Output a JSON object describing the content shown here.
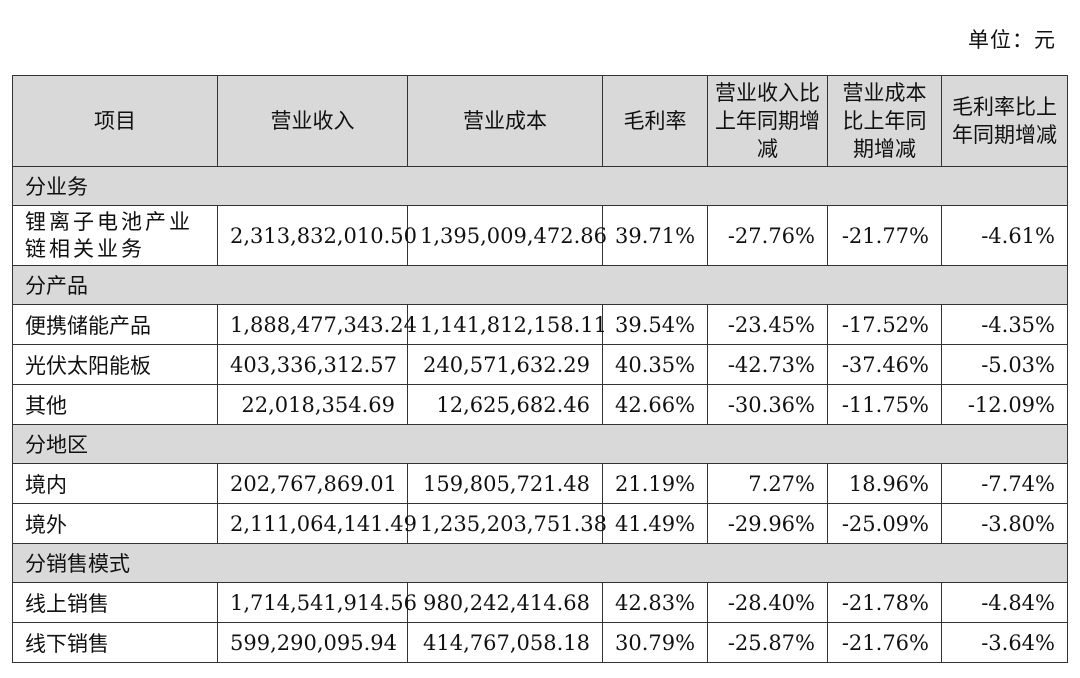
{
  "unit_label": "单位：元",
  "columns": [
    "项目",
    "营业收入",
    "营业成本",
    "毛利率",
    "营业收入比上年同期增减",
    "营业成本比上年同期增减",
    "毛利率比上年同期增减"
  ],
  "sections": [
    {
      "title": "分业务",
      "rows": [
        {
          "item": "锂离子电池产业链相关业务",
          "revenue": "2,313,832,010.50",
          "cost": "1,395,009,472.86",
          "margin": "39.71%",
          "rev_change": "-27.76%",
          "cost_change": "-21.77%",
          "margin_change": "-4.61%"
        }
      ]
    },
    {
      "title": "分产品",
      "rows": [
        {
          "item": "便携储能产品",
          "revenue": "1,888,477,343.24",
          "cost": "1,141,812,158.11",
          "margin": "39.54%",
          "rev_change": "-23.45%",
          "cost_change": "-17.52%",
          "margin_change": "-4.35%"
        },
        {
          "item": "光伏太阳能板",
          "revenue": "403,336,312.57",
          "cost": "240,571,632.29",
          "margin": "40.35%",
          "rev_change": "-42.73%",
          "cost_change": "-37.46%",
          "margin_change": "-5.03%"
        },
        {
          "item": "其他",
          "revenue": "22,018,354.69",
          "cost": "12,625,682.46",
          "margin": "42.66%",
          "rev_change": "-30.36%",
          "cost_change": "-11.75%",
          "margin_change": "-12.09%"
        }
      ]
    },
    {
      "title": "分地区",
      "rows": [
        {
          "item": "境内",
          "revenue": "202,767,869.01",
          "cost": "159,805,721.48",
          "margin": "21.19%",
          "rev_change": "7.27%",
          "cost_change": "18.96%",
          "margin_change": "-7.74%"
        },
        {
          "item": "境外",
          "revenue": "2,111,064,141.49",
          "cost": "1,235,203,751.38",
          "margin": "41.49%",
          "rev_change": "-29.96%",
          "cost_change": "-25.09%",
          "margin_change": "-3.80%"
        }
      ]
    },
    {
      "title": "分销售模式",
      "rows": [
        {
          "item": "线上销售",
          "revenue": "1,714,541,914.56",
          "cost": "980,242,414.68",
          "margin": "42.83%",
          "rev_change": "-28.40%",
          "cost_change": "-21.78%",
          "margin_change": "-4.84%"
        },
        {
          "item": "线下销售",
          "revenue": "599,290,095.94",
          "cost": "414,767,058.18",
          "margin": "30.79%",
          "rev_change": "-25.87%",
          "cost_change": "-21.76%",
          "margin_change": "-3.64%"
        }
      ]
    }
  ]
}
